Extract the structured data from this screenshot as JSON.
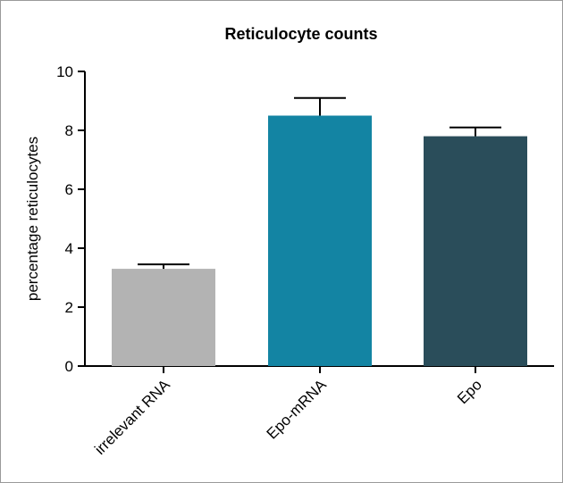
{
  "chart_data": {
    "type": "bar",
    "title": "Reticulocyte counts",
    "xlabel": "",
    "ylabel": "percentage reticulocytes",
    "categories": [
      "irrelevant RNA",
      "Epo-mRNA",
      "Epo"
    ],
    "values": [
      3.3,
      8.5,
      7.8
    ],
    "errors": [
      0.15,
      0.6,
      0.3
    ],
    "colors": [
      "#b3b3b3",
      "#1384a3",
      "#2a4d5a"
    ],
    "ylim": [
      0,
      10
    ],
    "yticks": [
      "0",
      "2",
      "4",
      "6",
      "8",
      "10"
    ],
    "grid": false,
    "legend": "none"
  }
}
